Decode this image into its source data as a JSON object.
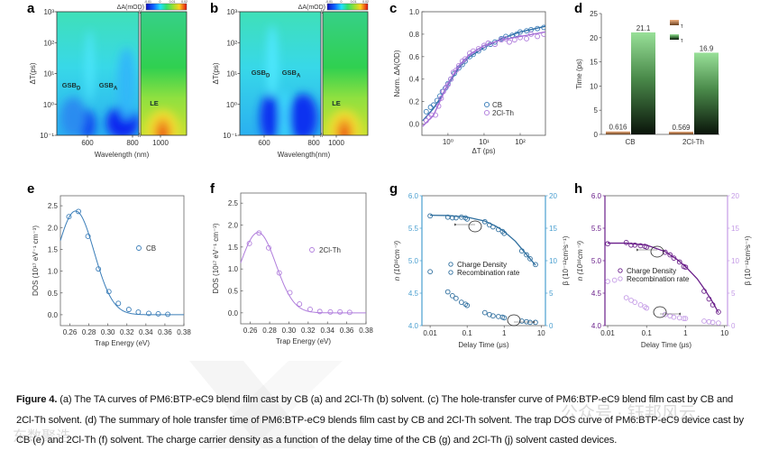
{
  "figure": {
    "panel_letters": [
      "a",
      "b",
      "c",
      "d",
      "e",
      "f",
      "g",
      "h"
    ]
  },
  "caption": {
    "label": "Figure 4.",
    "text": " (a) The TA curves of PM6:BTP-eC9 blend film cast by CB (a) and 2Cl-Th (b) solvent. (c) The hole-transfer curve of PM6:BTP-eC9 blend film cast by CB and 2Cl-Th solvent. (d) The summary of hole transfer time of PM6:BTP-eC9 blends film cast by CB and 2Cl-Th solvent. The trap DOS curve of PM6:BTP-eC9 device cast by CB (e) and 2Cl-Th (f) solvent. The charge carrier density as a function of the delay time of the CB (g) and 2Cl-Th (j) solvent casted devices."
  },
  "watermarks": [
    "公众号 · 钰邦风云",
    "东数聚诰"
  ],
  "chart_data": [
    {
      "type": "heatmap",
      "panel": "a",
      "xlabel": "Wavelength (nm)",
      "ylabel": "ΔT(ps)",
      "xticks": [
        "600",
        "800",
        "1000"
      ],
      "yticks": [
        "10⁻¹",
        "10⁰",
        "10¹",
        "10²",
        "10³"
      ],
      "ylim": [
        0.1,
        1000
      ],
      "colorbar": {
        "label": "ΔA(mOD)",
        "ticks": [
          "-0.01",
          "0",
          "0.01",
          "0.02"
        ],
        "range": [
          -0.01,
          0.02
        ]
      },
      "break_symbol": "//",
      "annotations": [
        {
          "text": "GSB",
          "sub": "D"
        },
        {
          "text": "GSB",
          "sub": "A"
        },
        {
          "text": "LE",
          "sub": ""
        }
      ]
    },
    {
      "type": "heatmap",
      "panel": "b",
      "xlabel": "Wavelength(nm)",
      "ylabel": "ΔT(ps)",
      "xticks": [
        "600",
        "800",
        "1000"
      ],
      "yticks": [
        "10⁻¹",
        "10⁰",
        "10¹",
        "10²",
        "10³"
      ],
      "ylim": [
        0.1,
        1000
      ],
      "colorbar": {
        "label": "ΔA(mOD)",
        "ticks": [
          "-0.01",
          "0",
          "0.01",
          "0.02"
        ],
        "range": [
          -0.01,
          0.02
        ]
      },
      "break_symbol": "//",
      "annotations": [
        {
          "text": "GSB",
          "sub": "D"
        },
        {
          "text": "GSB",
          "sub": "A"
        },
        {
          "text": "LE",
          "sub": ""
        }
      ]
    },
    {
      "type": "scatter",
      "panel": "c",
      "xlabel": "ΔT (ps)",
      "ylabel": "Norm. ΔA(OD)",
      "xscale": "log",
      "xlim": [
        0.19,
        500
      ],
      "ylim": [
        -0.1,
        1.0
      ],
      "xticks": [
        {
          "v": 1,
          "label": "10⁰"
        },
        {
          "v": 10,
          "label": "10¹"
        },
        {
          "v": 100,
          "label": "10²"
        }
      ],
      "yticks": [
        {
          "v": 0,
          "label": "0.0"
        },
        {
          "v": 0.2,
          "label": "0.2"
        },
        {
          "v": 0.4,
          "label": "0.4"
        },
        {
          "v": 0.6,
          "label": "0.6"
        },
        {
          "v": 0.8,
          "label": "0.8"
        },
        {
          "v": 1.0,
          "label": "1.0"
        }
      ],
      "legend_position": "bottom-right",
      "series": [
        {
          "name": "CB",
          "color": "#3a7db8",
          "fitcolor": "#2f6fa8",
          "x": [
            0.25,
            0.33,
            0.4,
            0.5,
            0.6,
            0.7,
            0.85,
            1.0,
            1.2,
            1.5,
            2,
            2.5,
            3,
            4,
            5,
            7,
            10,
            15,
            20,
            30,
            40,
            60,
            80,
            100,
            150,
            200,
            300,
            450
          ],
          "y": [
            0.11,
            0.15,
            0.17,
            0.21,
            0.25,
            0.29,
            0.32,
            0.36,
            0.4,
            0.45,
            0.5,
            0.53,
            0.56,
            0.6,
            0.62,
            0.65,
            0.68,
            0.71,
            0.73,
            0.76,
            0.78,
            0.79,
            0.8,
            0.82,
            0.83,
            0.84,
            0.85,
            0.86
          ],
          "fit_x": [
            0.2,
            0.4,
            0.7,
            1,
            2,
            4,
            10,
            30,
            100,
            500
          ],
          "fit_y": [
            0.03,
            0.14,
            0.26,
            0.35,
            0.5,
            0.6,
            0.68,
            0.76,
            0.82,
            0.87
          ]
        },
        {
          "name": "2Cl-Th",
          "color": "#b07ddc",
          "fitcolor": "#a56fd6",
          "x": [
            0.25,
            0.3,
            0.35,
            0.45,
            0.55,
            0.65,
            0.75,
            0.9,
            1.0,
            1.2,
            1.4,
            1.7,
            2,
            2.5,
            3,
            4,
            5,
            7,
            10,
            13,
            20,
            30,
            40,
            50,
            70,
            100,
            150,
            200,
            300,
            450
          ],
          "y": [
            0.03,
            0.06,
            0.08,
            0.08,
            0.16,
            0.23,
            0.29,
            0.33,
            0.35,
            0.4,
            0.46,
            0.48,
            0.52,
            0.56,
            0.58,
            0.63,
            0.65,
            0.67,
            0.7,
            0.72,
            0.71,
            0.75,
            0.76,
            0.73,
            0.75,
            0.77,
            0.76,
            0.8,
            0.78,
            0.8
          ],
          "fit_x": [
            0.2,
            0.4,
            0.7,
            1,
            2,
            4,
            10,
            30,
            100,
            500
          ],
          "fit_y": [
            -0.02,
            0.08,
            0.25,
            0.36,
            0.52,
            0.62,
            0.7,
            0.75,
            0.78,
            0.82
          ]
        }
      ]
    },
    {
      "type": "bar",
      "panel": "d",
      "ylabel": "Time (ps)",
      "ylim": [
        0,
        25
      ],
      "yticks": [
        "0",
        "5",
        "10",
        "15",
        "20",
        "25"
      ],
      "categories": [
        "CB",
        "2Cl-Th"
      ],
      "legend_position": "top-right",
      "series": [
        {
          "name": "τ",
          "sub": "1",
          "values": [
            0.616,
            0.569
          ],
          "labels": [
            "0.616",
            "0.569"
          ],
          "color": "#e0a070"
        },
        {
          "name": "τ",
          "sub": "2",
          "values": [
            21.1,
            16.9
          ],
          "labels": [
            "21.1",
            "16.9"
          ],
          "color": "#8fd98f"
        }
      ]
    },
    {
      "type": "scatter",
      "panel": "e",
      "xlabel": "Trap Energy (eV)",
      "ylabel": "DOS (10¹⁷ eV⁻¹ cm⁻³)",
      "xlim": [
        0.25,
        0.38
      ],
      "ylim": [
        -0.25,
        2.73
      ],
      "xticks": [
        "0.26",
        "0.28",
        "0.30",
        "0.32",
        "0.34",
        "0.36",
        "0.38"
      ],
      "yticks": [
        "0.0",
        "0.5",
        "1.0",
        "1.5",
        "2.0",
        "2.5"
      ],
      "legend_position": "center-right",
      "series": [
        {
          "name": "CB",
          "color": "#3a7db8",
          "x": [
            0.259,
            0.269,
            0.279,
            0.29,
            0.301,
            0.311,
            0.322,
            0.332,
            0.343,
            0.353,
            0.363
          ],
          "y": [
            2.25,
            2.37,
            1.8,
            1.05,
            0.53,
            0.26,
            0.12,
            0.06,
            0.03,
            0.02,
            0.01
          ],
          "gaussian_fit": {
            "amplitude": 2.38,
            "center": 0.266,
            "width": 0.0195
          }
        }
      ]
    },
    {
      "type": "scatter",
      "panel": "f",
      "xlabel": "Trap Energy (eV)",
      "ylabel": "DOS (10¹⁷ eV⁻¹ cm⁻³)",
      "xlim": [
        0.25,
        0.38
      ],
      "ylim": [
        -0.25,
        2.73
      ],
      "xticks": [
        "0.26",
        "0.28",
        "0.30",
        "0.32",
        "0.34",
        "0.36",
        "0.38"
      ],
      "yticks": [
        "0.0",
        "0.5",
        "1.0",
        "1.5",
        "2.0",
        "2.5"
      ],
      "legend_position": "center-right",
      "series": [
        {
          "name": "2Cl-Th",
          "color": "#b07ddc",
          "x": [
            0.259,
            0.269,
            0.279,
            0.29,
            0.301,
            0.311,
            0.322,
            0.332,
            0.343,
            0.353,
            0.363
          ],
          "y": [
            1.58,
            1.82,
            1.48,
            0.91,
            0.46,
            0.2,
            0.08,
            0.03,
            0.02,
            0.02,
            0.01
          ],
          "gaussian_fit": {
            "amplitude": 1.83,
            "center": 0.268,
            "width": 0.0185
          }
        }
      ]
    },
    {
      "type": "scatter",
      "panel": "g",
      "xlabel": "Delay Time (μs)",
      "ylabel": "n (10¹⁶cm⁻³)",
      "y2label": "β (10⁻¹²cm³s⁻¹)",
      "xscale": "log",
      "xlim": [
        0.006,
        13
      ],
      "ylim": [
        4.0,
        6.0
      ],
      "y2lim": [
        0,
        20
      ],
      "xticks": [
        {
          "v": 0.01,
          "label": "0.01"
        },
        {
          "v": 0.1,
          "label": "0.1"
        },
        {
          "v": 1,
          "label": "1"
        },
        {
          "v": 10,
          "label": "10"
        }
      ],
      "yticks": [
        "4.0",
        "4.5",
        "5.0",
        "5.5",
        "6.0"
      ],
      "y2ticks": [
        "0",
        "5",
        "10",
        "15",
        "20"
      ],
      "axis_color": "#4a9fd0",
      "mark_color": "#2e6e9e",
      "legend_position": "center",
      "series": [
        {
          "name": "Charge Density",
          "axis": "left",
          "x": [
            0.01,
            0.03,
            0.04,
            0.05,
            0.07,
            0.09,
            0.1,
            0.3,
            0.4,
            0.5,
            0.7,
            0.9,
            1,
            3,
            4,
            5,
            7
          ],
          "y": [
            5.69,
            5.67,
            5.66,
            5.66,
            5.67,
            5.66,
            5.64,
            5.6,
            5.55,
            5.52,
            5.48,
            5.45,
            5.42,
            5.15,
            5.09,
            5.03,
            4.94
          ],
          "fit_x": [
            0.01,
            0.03,
            0.1,
            0.3,
            0.6,
            1,
            2,
            3,
            5,
            7
          ],
          "fit_y": [
            5.7,
            5.695,
            5.67,
            5.61,
            5.53,
            5.45,
            5.3,
            5.18,
            5.03,
            4.93
          ]
        },
        {
          "name": "Recombination rate",
          "axis": "right",
          "x": [
            0.01,
            0.03,
            0.04,
            0.05,
            0.07,
            0.09,
            0.1,
            0.3,
            0.4,
            0.5,
            0.7,
            0.9,
            1,
            3,
            4,
            5,
            7
          ],
          "y": [
            8.3,
            5.2,
            4.6,
            4.2,
            3.6,
            3.3,
            3.1,
            2.0,
            1.7,
            1.5,
            1.4,
            1.3,
            1.2,
            0.7,
            0.6,
            0.5,
            0.5
          ]
        }
      ]
    },
    {
      "type": "scatter",
      "panel": "h",
      "xlabel": "Delay Time (μs)",
      "ylabel": "n (10¹⁶cm⁻³)",
      "y2label": "β (10⁻¹²cm³s⁻¹)",
      "xscale": "log",
      "xlim": [
        0.0085,
        12
      ],
      "ylim": [
        4.0,
        6.0
      ],
      "y2lim": [
        0,
        20
      ],
      "xticks": [
        {
          "v": 0.01,
          "label": "0.01"
        },
        {
          "v": 0.1,
          "label": "0.1"
        },
        {
          "v": 1,
          "label": "1"
        },
        {
          "v": 10,
          "label": "10"
        }
      ],
      "yticks": [
        "4.0",
        "4.5",
        "5.0",
        "5.5",
        "6.0"
      ],
      "y2ticks": [
        "0",
        "5",
        "10",
        "15",
        "20"
      ],
      "axis_color": "#6a1f8a",
      "axis2_color": "#c49be6",
      "mark_color": "#6a1f8a",
      "mark2_color": "#c49be6",
      "legend_position": "center",
      "series": [
        {
          "name": "Charge Density",
          "axis": "left",
          "x": [
            0.01,
            0.03,
            0.04,
            0.05,
            0.07,
            0.09,
            0.1,
            0.3,
            0.4,
            0.5,
            0.7,
            0.9,
            1,
            3,
            4,
            5,
            7
          ],
          "y": [
            5.26,
            5.28,
            5.24,
            5.24,
            5.23,
            5.22,
            5.21,
            5.13,
            5.09,
            5.04,
            4.98,
            4.91,
            4.9,
            4.53,
            4.41,
            4.32,
            4.21
          ],
          "fit_x": [
            0.01,
            0.03,
            0.1,
            0.3,
            0.6,
            1,
            2,
            3,
            5,
            7
          ],
          "fit_y": [
            5.27,
            5.27,
            5.24,
            5.14,
            5.02,
            4.91,
            4.72,
            4.57,
            4.36,
            4.2
          ]
        },
        {
          "name": "Recombination rate",
          "axis": "right",
          "x": [
            0.01,
            0.015,
            0.03,
            0.04,
            0.05,
            0.07,
            0.09,
            0.1,
            0.3,
            0.4,
            0.5,
            0.7,
            0.9,
            1,
            3,
            4,
            5,
            7
          ],
          "y": [
            6.8,
            7.0,
            4.3,
            3.9,
            3.6,
            3.2,
            2.9,
            2.7,
            1.7,
            1.5,
            1.3,
            1.2,
            1.1,
            1.1,
            0.7,
            0.6,
            0.5,
            0.4
          ]
        }
      ]
    }
  ]
}
